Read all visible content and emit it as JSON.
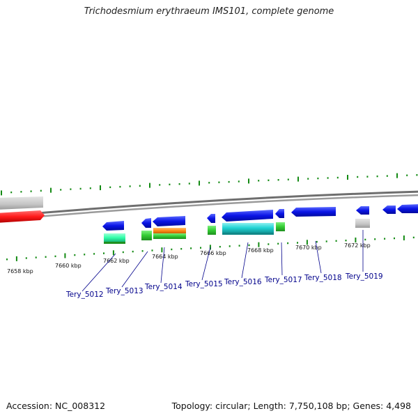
{
  "title": "Trichodesmium erythraeum IMS101, complete genome",
  "footer": {
    "accession": "Accession: NC_008312",
    "summary": "Topology: circular; Length: 7,750,108 bp; Genes: 4,498"
  },
  "scale_labels": [
    "7658 kbp",
    "7660 kbp",
    "7662 kbp",
    "7664 kbp",
    "7666 kbp",
    "7668 kbp",
    "7670 kbp",
    "7672 kbp"
  ],
  "genes": [
    {
      "label": "Tery_5012",
      "strand": "minus"
    },
    {
      "label": "Tery_5013",
      "strand": "minus"
    },
    {
      "label": "Tery_5014",
      "strand": "minus"
    },
    {
      "label": "Tery_5015",
      "strand": "minus"
    },
    {
      "label": "Tery_5016",
      "strand": "minus"
    },
    {
      "label": "Tery_5017",
      "strand": "minus"
    },
    {
      "label": "Tery_5018",
      "strand": "minus"
    },
    {
      "label": "Tery_5019",
      "strand": "minus"
    }
  ],
  "colors": {
    "cds": "#0a14e6",
    "rrna_red": "#ff1a1a",
    "gray_feature": "#c8c8c8",
    "green": "#33cc33",
    "mint": "#33ffaa",
    "orange": "#ff8c1a",
    "cyan": "#22d4d4",
    "backbone": "#7a7a7a",
    "ticks": "#138a13",
    "label_blue": "#00008b"
  }
}
